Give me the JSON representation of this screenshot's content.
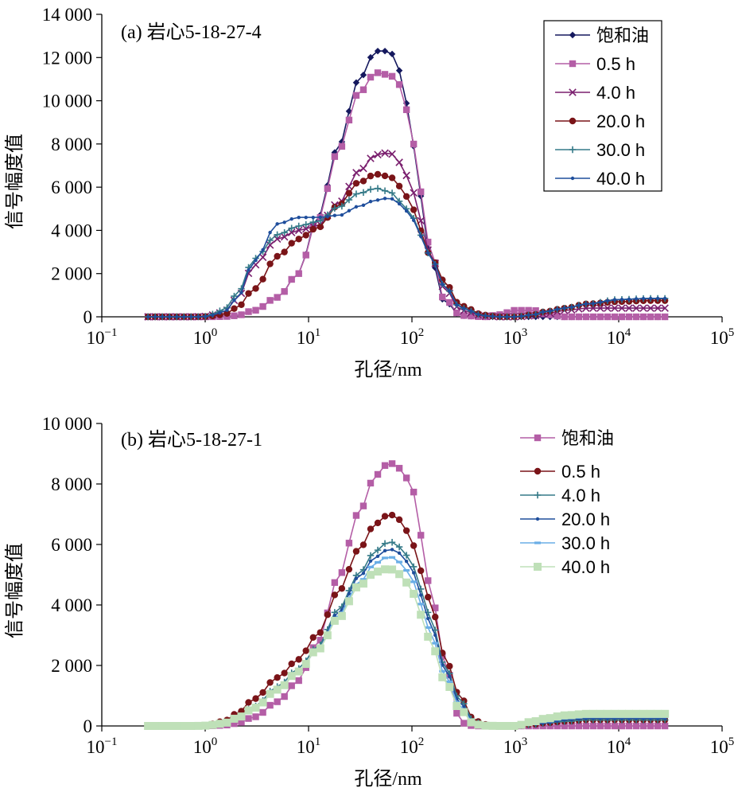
{
  "chart_data": [
    {
      "type": "line",
      "title": "(a) 岩心5-18-27-4",
      "xlabel": "孔径/nm",
      "ylabel": "信号幅度值",
      "x_scale": "log",
      "xlim": [
        0.1,
        100000
      ],
      "ylim": [
        0,
        14000
      ],
      "y_ticks": [
        0,
        2000,
        4000,
        6000,
        8000,
        10000,
        12000,
        14000
      ],
      "y_tick_labels": [
        "0",
        "2 000",
        "4 000",
        "6 000",
        "8 000",
        "10 000",
        "12 000",
        "14 000"
      ],
      "x_tick_labels": [
        {
          "base": "10",
          "exp": "−1"
        },
        {
          "base": "10",
          "exp": "0"
        },
        {
          "base": "10",
          "exp": "1"
        },
        {
          "base": "10",
          "exp": "2"
        },
        {
          "base": "10",
          "exp": "3"
        },
        {
          "base": "10",
          "exp": "4"
        },
        {
          "base": "10",
          "exp": "5"
        }
      ],
      "legend_position": "top-right",
      "x": [
        0.28,
        0.5,
        0.8,
        1,
        1.5,
        2,
        3,
        5,
        8,
        12,
        20,
        30,
        45,
        60,
        80,
        100,
        150,
        200,
        300,
        500,
        700,
        1000,
        1500,
        2000,
        3000,
        5000,
        10000,
        20000,
        28000
      ],
      "series": [
        {
          "name": "饱和油",
          "color": "#15195e",
          "marker": "diamond",
          "values": [
            0,
            0,
            0,
            0,
            10,
            50,
            300,
            900,
            2000,
            4500,
            8000,
            10900,
            12300,
            12300,
            11300,
            8000,
            3000,
            800,
            50,
            0,
            0,
            0,
            0,
            0,
            0,
            0,
            0,
            0,
            0
          ]
        },
        {
          "name": "0.5 h",
          "color": "#b45ea6",
          "marker": "square",
          "values": [
            0,
            0,
            0,
            0,
            10,
            50,
            300,
            900,
            2000,
            4400,
            7800,
            10300,
            11300,
            11200,
            10700,
            8100,
            3300,
            900,
            60,
            0,
            100,
            300,
            300,
            100,
            0,
            0,
            0,
            0,
            0
          ]
        },
        {
          "name": "4.0 h",
          "color": "#7a1f6e",
          "marker": "cross",
          "values": [
            0,
            0,
            0,
            20,
            200,
            800,
            2400,
            3600,
            4000,
            4200,
            5300,
            6700,
            7500,
            7600,
            7100,
            5800,
            3000,
            1400,
            300,
            30,
            0,
            0,
            50,
            150,
            300,
            400,
            400,
            400,
            400
          ]
        },
        {
          "name": "20.0 h",
          "color": "#7a1418",
          "marker": "circle",
          "values": [
            0,
            0,
            0,
            10,
            100,
            400,
            1300,
            2800,
            3600,
            4100,
            5200,
            6200,
            6600,
            6500,
            6000,
            5000,
            2900,
            1700,
            500,
            80,
            0,
            0,
            100,
            250,
            400,
            600,
            700,
            750,
            750
          ]
        },
        {
          "name": "30.0 h",
          "color": "#357a88",
          "marker": "plus",
          "values": [
            0,
            0,
            0,
            20,
            300,
            1000,
            2700,
            3800,
            4200,
            4400,
            5100,
            5700,
            5950,
            5800,
            5300,
            4600,
            2900,
            1500,
            400,
            50,
            0,
            0,
            100,
            250,
            400,
            600,
            800,
            850,
            850
          ]
        },
        {
          "name": "40.0 h",
          "color": "#1f4e9c",
          "marker": "dot",
          "values": [
            0,
            0,
            0,
            10,
            200,
            800,
            2600,
            4300,
            4600,
            4600,
            4700,
            5100,
            5400,
            5500,
            5200,
            4500,
            2900,
            1500,
            400,
            50,
            0,
            0,
            100,
            250,
            400,
            600,
            800,
            850,
            850
          ]
        }
      ]
    },
    {
      "type": "line",
      "title": "(b) 岩心5-18-27-1",
      "xlabel": "孔径/nm",
      "ylabel": "信号幅度值",
      "x_scale": "log",
      "xlim": [
        0.1,
        100000
      ],
      "ylim": [
        0,
        10000
      ],
      "y_ticks": [
        0,
        2000,
        4000,
        6000,
        8000,
        10000
      ],
      "y_tick_labels": [
        "0",
        "2 000",
        "4 000",
        "6 000",
        "8 000",
        "10 000"
      ],
      "x_tick_labels": [
        {
          "base": "10",
          "exp": "−1"
        },
        {
          "base": "10",
          "exp": "0"
        },
        {
          "base": "10",
          "exp": "1"
        },
        {
          "base": "10",
          "exp": "2"
        },
        {
          "base": "10",
          "exp": "3"
        },
        {
          "base": "10",
          "exp": "4"
        },
        {
          "base": "10",
          "exp": "5"
        }
      ],
      "legend_position": "top-right",
      "x": [
        0.28,
        0.5,
        0.8,
        1,
        1.5,
        2,
        3,
        5,
        8,
        12,
        20,
        30,
        45,
        60,
        80,
        100,
        150,
        200,
        300,
        400,
        500,
        700,
        1000,
        1500,
        2000,
        3000,
        5000,
        10000,
        20000,
        28000
      ],
      "series": [
        {
          "name": "饱和油",
          "color": "#b45ea6",
          "marker": "square",
          "values": [
            0,
            0,
            0,
            0,
            20,
            80,
            300,
            800,
            1500,
            2700,
            5000,
            7000,
            8300,
            8700,
            8500,
            7800,
            4700,
            2300,
            100,
            0,
            0,
            0,
            0,
            0,
            0,
            0,
            0,
            0,
            0,
            0
          ]
        },
        {
          "name": "0.5 h",
          "color": "#7a1418",
          "marker": "circle",
          "values": [
            0,
            0,
            0,
            20,
            150,
            400,
            900,
            1600,
            2200,
            3000,
            4500,
            5800,
            6700,
            7000,
            6800,
            6000,
            4200,
            2400,
            900,
            200,
            50,
            0,
            0,
            50,
            100,
            150,
            200,
            200,
            200,
            200
          ]
        },
        {
          "name": "4.0 h",
          "color": "#357a88",
          "marker": "plus",
          "values": [
            0,
            0,
            0,
            10,
            80,
            250,
            650,
            1300,
            1900,
            2600,
            3900,
            5000,
            5800,
            6100,
            5900,
            5300,
            3700,
            2100,
            800,
            150,
            30,
            0,
            0,
            50,
            100,
            150,
            200,
            200,
            200,
            200
          ]
        },
        {
          "name": "20.0 h",
          "color": "#1f4e9c",
          "marker": "dot",
          "values": [
            0,
            0,
            0,
            10,
            80,
            250,
            600,
            1200,
            1800,
            2500,
            3800,
            4900,
            5600,
            5850,
            5700,
            5100,
            3500,
            2000,
            700,
            100,
            20,
            0,
            0,
            50,
            100,
            200,
            250,
            250,
            250,
            250
          ]
        },
        {
          "name": "30.0 h",
          "color": "#6aaee6",
          "marker": "dash",
          "values": [
            0,
            0,
            0,
            10,
            80,
            250,
            600,
            1200,
            1800,
            2500,
            3700,
            4700,
            5400,
            5600,
            5400,
            4800,
            3200,
            1800,
            600,
            80,
            10,
            0,
            0,
            80,
            150,
            250,
            300,
            300,
            300,
            300
          ]
        },
        {
          "name": "40.0 h",
          "color": "#bfe0b8",
          "marker": "bigsquare",
          "values": [
            0,
            0,
            0,
            10,
            80,
            250,
            600,
            1200,
            1800,
            2500,
            3600,
            4600,
            5100,
            5200,
            5000,
            4400,
            2900,
            1600,
            500,
            60,
            10,
            0,
            0,
            150,
            250,
            350,
            400,
            400,
            400,
            400
          ]
        }
      ]
    }
  ]
}
